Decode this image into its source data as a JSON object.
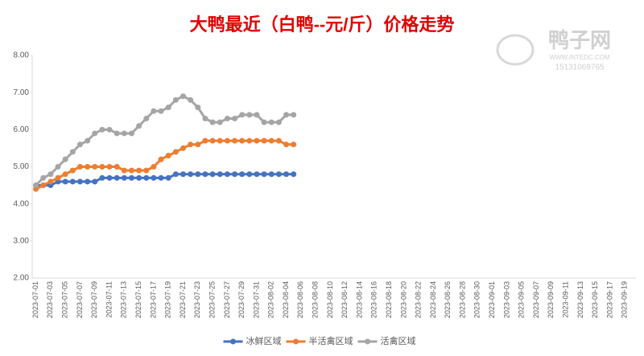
{
  "chart_data": {
    "type": "line",
    "title": "大鸭最近（白鸭--元/斤）价格走势",
    "watermark": [
      "鸭子网",
      "WWW.INTEDC.COM",
      "15131069765"
    ],
    "categories": [
      "2023-07-01",
      null,
      "2023-07-03",
      null,
      "2023-07-05",
      null,
      "2023-07-07",
      null,
      "2023-07-09",
      null,
      "2023-07-11",
      null,
      "2023-07-13",
      null,
      "2023-07-15",
      null,
      "2023-07-17",
      null,
      "2023-07-19",
      null,
      "2023-07-21",
      null,
      "2023-07-23",
      null,
      "2023-07-25",
      null,
      "2023-07-27",
      null,
      "2023-07-29",
      null,
      "2023-07-31",
      null,
      "2023-08-02",
      null,
      "2023-08-04",
      null,
      "2023-08-06",
      null,
      "2023-08-08",
      null,
      "2023-08-10",
      null,
      "2023-08-12",
      null,
      "2023-08-14",
      null,
      "2023-08-16",
      null,
      "2023-08-18",
      null,
      "2023-08-20",
      null,
      "2023-08-22",
      null,
      "2023-08-24",
      null,
      "2023-08-26",
      null,
      "2023-08-28",
      null,
      "2023-08-30",
      null,
      "2023-09-01",
      null,
      "2023-09-03",
      null,
      "2023-09-05",
      null,
      "2023-09-07",
      null,
      "2023-09-09",
      null,
      "2023-09-11",
      null,
      "2023-09-13",
      null,
      "2023-09-15",
      null,
      "2023-09-17",
      null,
      "2023-09-19",
      null
    ],
    "series": [
      {
        "name": "冰鲜区域",
        "color": "#4472c4",
        "values": [
          4.5,
          4.5,
          4.5,
          4.6,
          4.6,
          4.6,
          4.6,
          4.6,
          4.6,
          4.7,
          4.7,
          4.7,
          4.7,
          4.7,
          4.7,
          4.7,
          4.7,
          4.7,
          4.7,
          4.8,
          4.8,
          4.8,
          4.8,
          4.8,
          4.8,
          4.8,
          4.8,
          4.8,
          4.8,
          4.8,
          4.8,
          4.8,
          4.8,
          4.8,
          4.8,
          4.8,
          null,
          null,
          null,
          null,
          null,
          null,
          null,
          null,
          null,
          null,
          null,
          null,
          null,
          null,
          null,
          null,
          null,
          null,
          null,
          null,
          null,
          null,
          null,
          null,
          null,
          null,
          null,
          null,
          null,
          null,
          null,
          null,
          null,
          null,
          null,
          null,
          null,
          null,
          null,
          null,
          null,
          null,
          null,
          null,
          null,
          null
        ]
      },
      {
        "name": "半活禽区域",
        "color": "#ed7d31",
        "values": [
          4.4,
          4.5,
          4.6,
          4.7,
          4.8,
          4.9,
          5.0,
          5.0,
          5.0,
          5.0,
          5.0,
          5.0,
          4.9,
          4.9,
          4.9,
          4.9,
          5.0,
          5.2,
          5.3,
          5.4,
          5.5,
          5.6,
          5.6,
          5.7,
          5.7,
          5.7,
          5.7,
          5.7,
          5.7,
          5.7,
          5.7,
          5.7,
          5.7,
          5.7,
          5.6,
          5.6,
          null,
          null,
          null,
          null,
          null,
          null,
          null,
          null,
          null,
          null,
          null,
          null,
          null,
          null,
          null,
          null,
          null,
          null,
          null,
          null,
          null,
          null,
          null,
          null,
          null,
          null,
          null,
          null,
          null,
          null,
          null,
          null,
          null,
          null,
          null,
          null,
          null,
          null,
          null,
          null,
          null,
          null,
          null,
          null,
          null,
          null
        ]
      },
      {
        "name": "活禽区域",
        "color": "#a5a5a5",
        "values": [
          4.5,
          4.7,
          4.8,
          5.0,
          5.2,
          5.4,
          5.6,
          5.7,
          5.9,
          6.0,
          6.0,
          5.9,
          5.9,
          5.9,
          6.1,
          6.3,
          6.5,
          6.5,
          6.6,
          6.8,
          6.9,
          6.8,
          6.6,
          6.3,
          6.2,
          6.2,
          6.3,
          6.3,
          6.4,
          6.4,
          6.4,
          6.2,
          6.2,
          6.2,
          6.4,
          6.4,
          null,
          null,
          null,
          null,
          null,
          null,
          null,
          null,
          null,
          null,
          null,
          null,
          null,
          null,
          null,
          null,
          null,
          null,
          null,
          null,
          null,
          null,
          null,
          null,
          null,
          null,
          null,
          null,
          null,
          null,
          null,
          null,
          null,
          null,
          null,
          null,
          null,
          null,
          null,
          null,
          null,
          null,
          null,
          null,
          null,
          null
        ]
      }
    ],
    "ylim": [
      2,
      8
    ],
    "yticks": [
      {
        "value": 2,
        "label": "2.00"
      },
      {
        "value": 3,
        "label": "3.00"
      },
      {
        "value": 4,
        "label": "4.00"
      },
      {
        "value": 5,
        "label": "5.00"
      },
      {
        "value": 6,
        "label": "6.00"
      },
      {
        "value": 7,
        "label": "7.00"
      },
      {
        "value": 8,
        "label": "8.00"
      }
    ],
    "legend": "bottom"
  }
}
